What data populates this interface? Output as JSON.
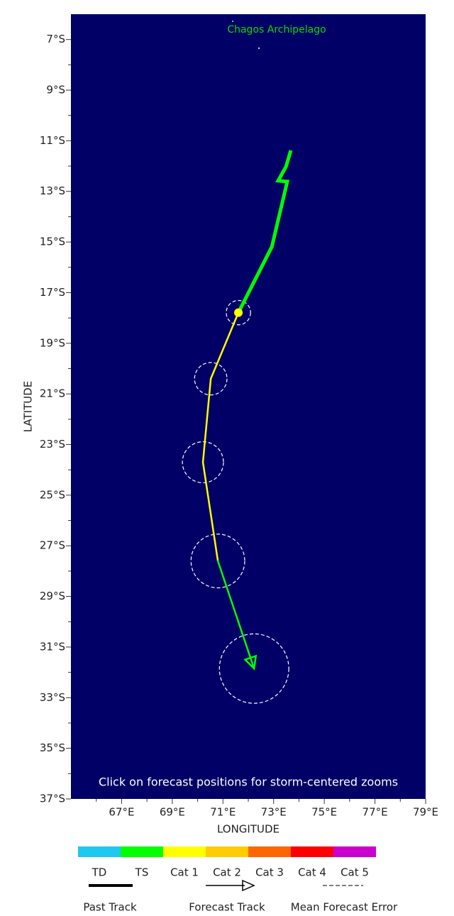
{
  "chart_data": {
    "type": "storm-track",
    "map_label": "Chagos Archipelago",
    "note": "Click on forecast positions for storm-centered zooms",
    "x_label": "LONGITUDE",
    "y_label": "LATITUDE",
    "background": "#000066",
    "xlim": [
      65,
      79
    ],
    "ylim": [
      6,
      37
    ],
    "xticks": [
      {
        "value": 67,
        "label": "67°E"
      },
      {
        "value": 69,
        "label": "69°E"
      },
      {
        "value": 71,
        "label": "71°E"
      },
      {
        "value": 73,
        "label": "73°E"
      },
      {
        "value": 75,
        "label": "75°E"
      },
      {
        "value": 77,
        "label": "77°E"
      },
      {
        "value": 79,
        "label": "79°E"
      }
    ],
    "xminor": [
      66,
      68,
      70,
      72,
      74,
      76,
      78
    ],
    "yticks": [
      {
        "value": 7,
        "label": "7°S"
      },
      {
        "value": 9,
        "label": "9°S"
      },
      {
        "value": 11,
        "label": "11°S"
      },
      {
        "value": 13,
        "label": "13°S"
      },
      {
        "value": 15,
        "label": "15°S"
      },
      {
        "value": 17,
        "label": "17°S"
      },
      {
        "value": 19,
        "label": "19°S"
      },
      {
        "value": 21,
        "label": "21°S"
      },
      {
        "value": 23,
        "label": "23°S"
      },
      {
        "value": 25,
        "label": "25°S"
      },
      {
        "value": 27,
        "label": "27°S"
      },
      {
        "value": 29,
        "label": "29°S"
      },
      {
        "value": 31,
        "label": "31°S"
      },
      {
        "value": 33,
        "label": "33°S"
      },
      {
        "value": 35,
        "label": "35°S"
      },
      {
        "value": 37,
        "label": "37°S"
      }
    ],
    "yminor": [
      8,
      10,
      12,
      14,
      16,
      18,
      20,
      22,
      24,
      26,
      28,
      30,
      32,
      34,
      36
    ],
    "past_track": {
      "color": "#00ff00",
      "lon": [
        73.68,
        73.49,
        73.18,
        73.54,
        72.93,
        71.61
      ],
      "lat": [
        11.38,
        12.02,
        12.58,
        12.61,
        15.19,
        17.79
      ]
    },
    "forecast_track": {
      "lon": [
        71.61,
        70.52,
        70.21,
        70.8,
        72.23
      ],
      "lat": [
        17.79,
        20.4,
        23.7,
        27.6,
        31.85
      ],
      "segment_colors": [
        "#ffff00",
        "#ffff00",
        "#ffff00",
        "#00ff00"
      ],
      "error_radius": [
        0.48,
        0.64,
        0.81,
        1.06,
        1.37
      ],
      "current_color": "#ffff00"
    },
    "scale": {
      "labels": [
        "TD",
        "TS",
        "Cat 1",
        "Cat 2",
        "Cat 3",
        "Cat 4",
        "Cat 5"
      ],
      "colors": [
        "#1ec8f0",
        "#00ff00",
        "#ffff00",
        "#ffcc00",
        "#ff6600",
        "#ff0000",
        "#cc00cc"
      ]
    },
    "legend": {
      "past": "Past Track",
      "forecast": "Forecast Track",
      "error": "Mean Forecast Error"
    }
  }
}
